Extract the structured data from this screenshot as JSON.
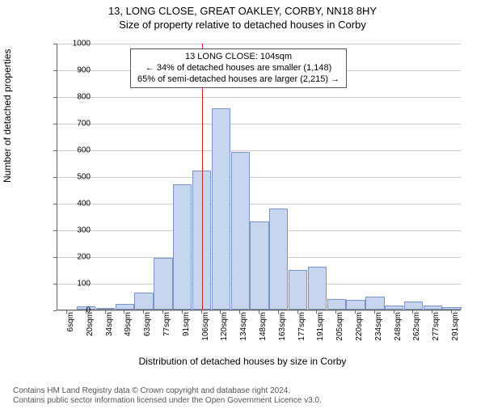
{
  "title": "13, LONG CLOSE, GREAT OAKLEY, CORBY, NN18 8HY",
  "subtitle": "Size of property relative to detached houses in Corby",
  "chart": {
    "type": "histogram",
    "xlabel": "Distribution of detached houses by size in Corby",
    "ylabel": "Number of detached properties",
    "ylim": [
      0,
      1000
    ],
    "ytick_step": 100,
    "xtick_labels": [
      "6sqm",
      "20sqm",
      "34sqm",
      "49sqm",
      "63sqm",
      "77sqm",
      "91sqm",
      "106sqm",
      "120sqm",
      "134sqm",
      "148sqm",
      "163sqm",
      "177sqm",
      "191sqm",
      "205sqm",
      "220sqm",
      "234sqm",
      "248sqm",
      "262sqm",
      "277sqm",
      "291sqm"
    ],
    "bar_values": [
      0,
      12,
      2,
      20,
      65,
      195,
      470,
      520,
      755,
      590,
      330,
      380,
      150,
      160,
      40,
      35,
      50,
      15,
      30,
      15,
      10
    ],
    "bar_fill": "#c7d6ee",
    "bar_stroke": "#7a95c4",
    "grid_color": "#cccccc",
    "background": "#ffffff",
    "reference_line": {
      "x_index": 7.0,
      "color": "#d62020"
    },
    "annotation": {
      "line1": "13 LONG CLOSE: 104sqm",
      "line2": "← 34% of detached houses are smaller (1,148)",
      "line3": "65% of semi-detached houses are larger (2,215) →"
    }
  },
  "footer": {
    "line1": "Contains HM Land Registry data © Crown copyright and database right 2024.",
    "line2": "Contains public sector information licensed under the Open Government Licence v3.0."
  }
}
